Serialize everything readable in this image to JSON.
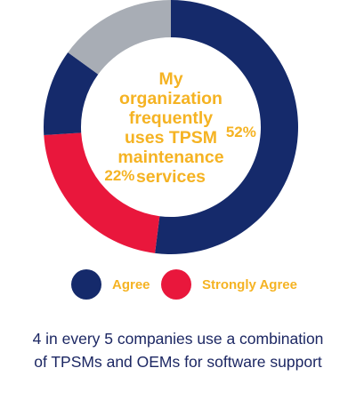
{
  "chart_data": {
    "type": "pie",
    "style": "donut",
    "title_lines": [
      "My",
      "organization",
      "frequently",
      "uses TPSM",
      "maintenance",
      "services"
    ],
    "slices": [
      {
        "name": "Agree",
        "value": 52,
        "label": "52%",
        "color": "#152a6b",
        "show_in_legend": true
      },
      {
        "name": "Strongly Agree",
        "value": 22,
        "label": "22%",
        "color": "#e9173c",
        "show_in_legend": true
      },
      {
        "name": "",
        "value": 11,
        "label": "",
        "color": "#152a6b",
        "show_in_legend": false
      },
      {
        "name": "",
        "value": 15,
        "label": "",
        "color": "#a8adb5",
        "show_in_legend": false
      }
    ],
    "start_angle_deg": 0,
    "legend": {
      "placement": "bottom"
    },
    "label_color": "#f5b323",
    "title_color": "#f5b323"
  },
  "legend": {
    "items": [
      {
        "label": "Agree",
        "color": "#152a6b",
        "text_color": "#f5b323"
      },
      {
        "label": "Strongly Agree",
        "color": "#e9173c",
        "text_color": "#f5b323"
      }
    ]
  },
  "footnote": {
    "line1": "4 in every 5 companies use a combination",
    "line2": "of TPSMs and OEMs for software support"
  }
}
